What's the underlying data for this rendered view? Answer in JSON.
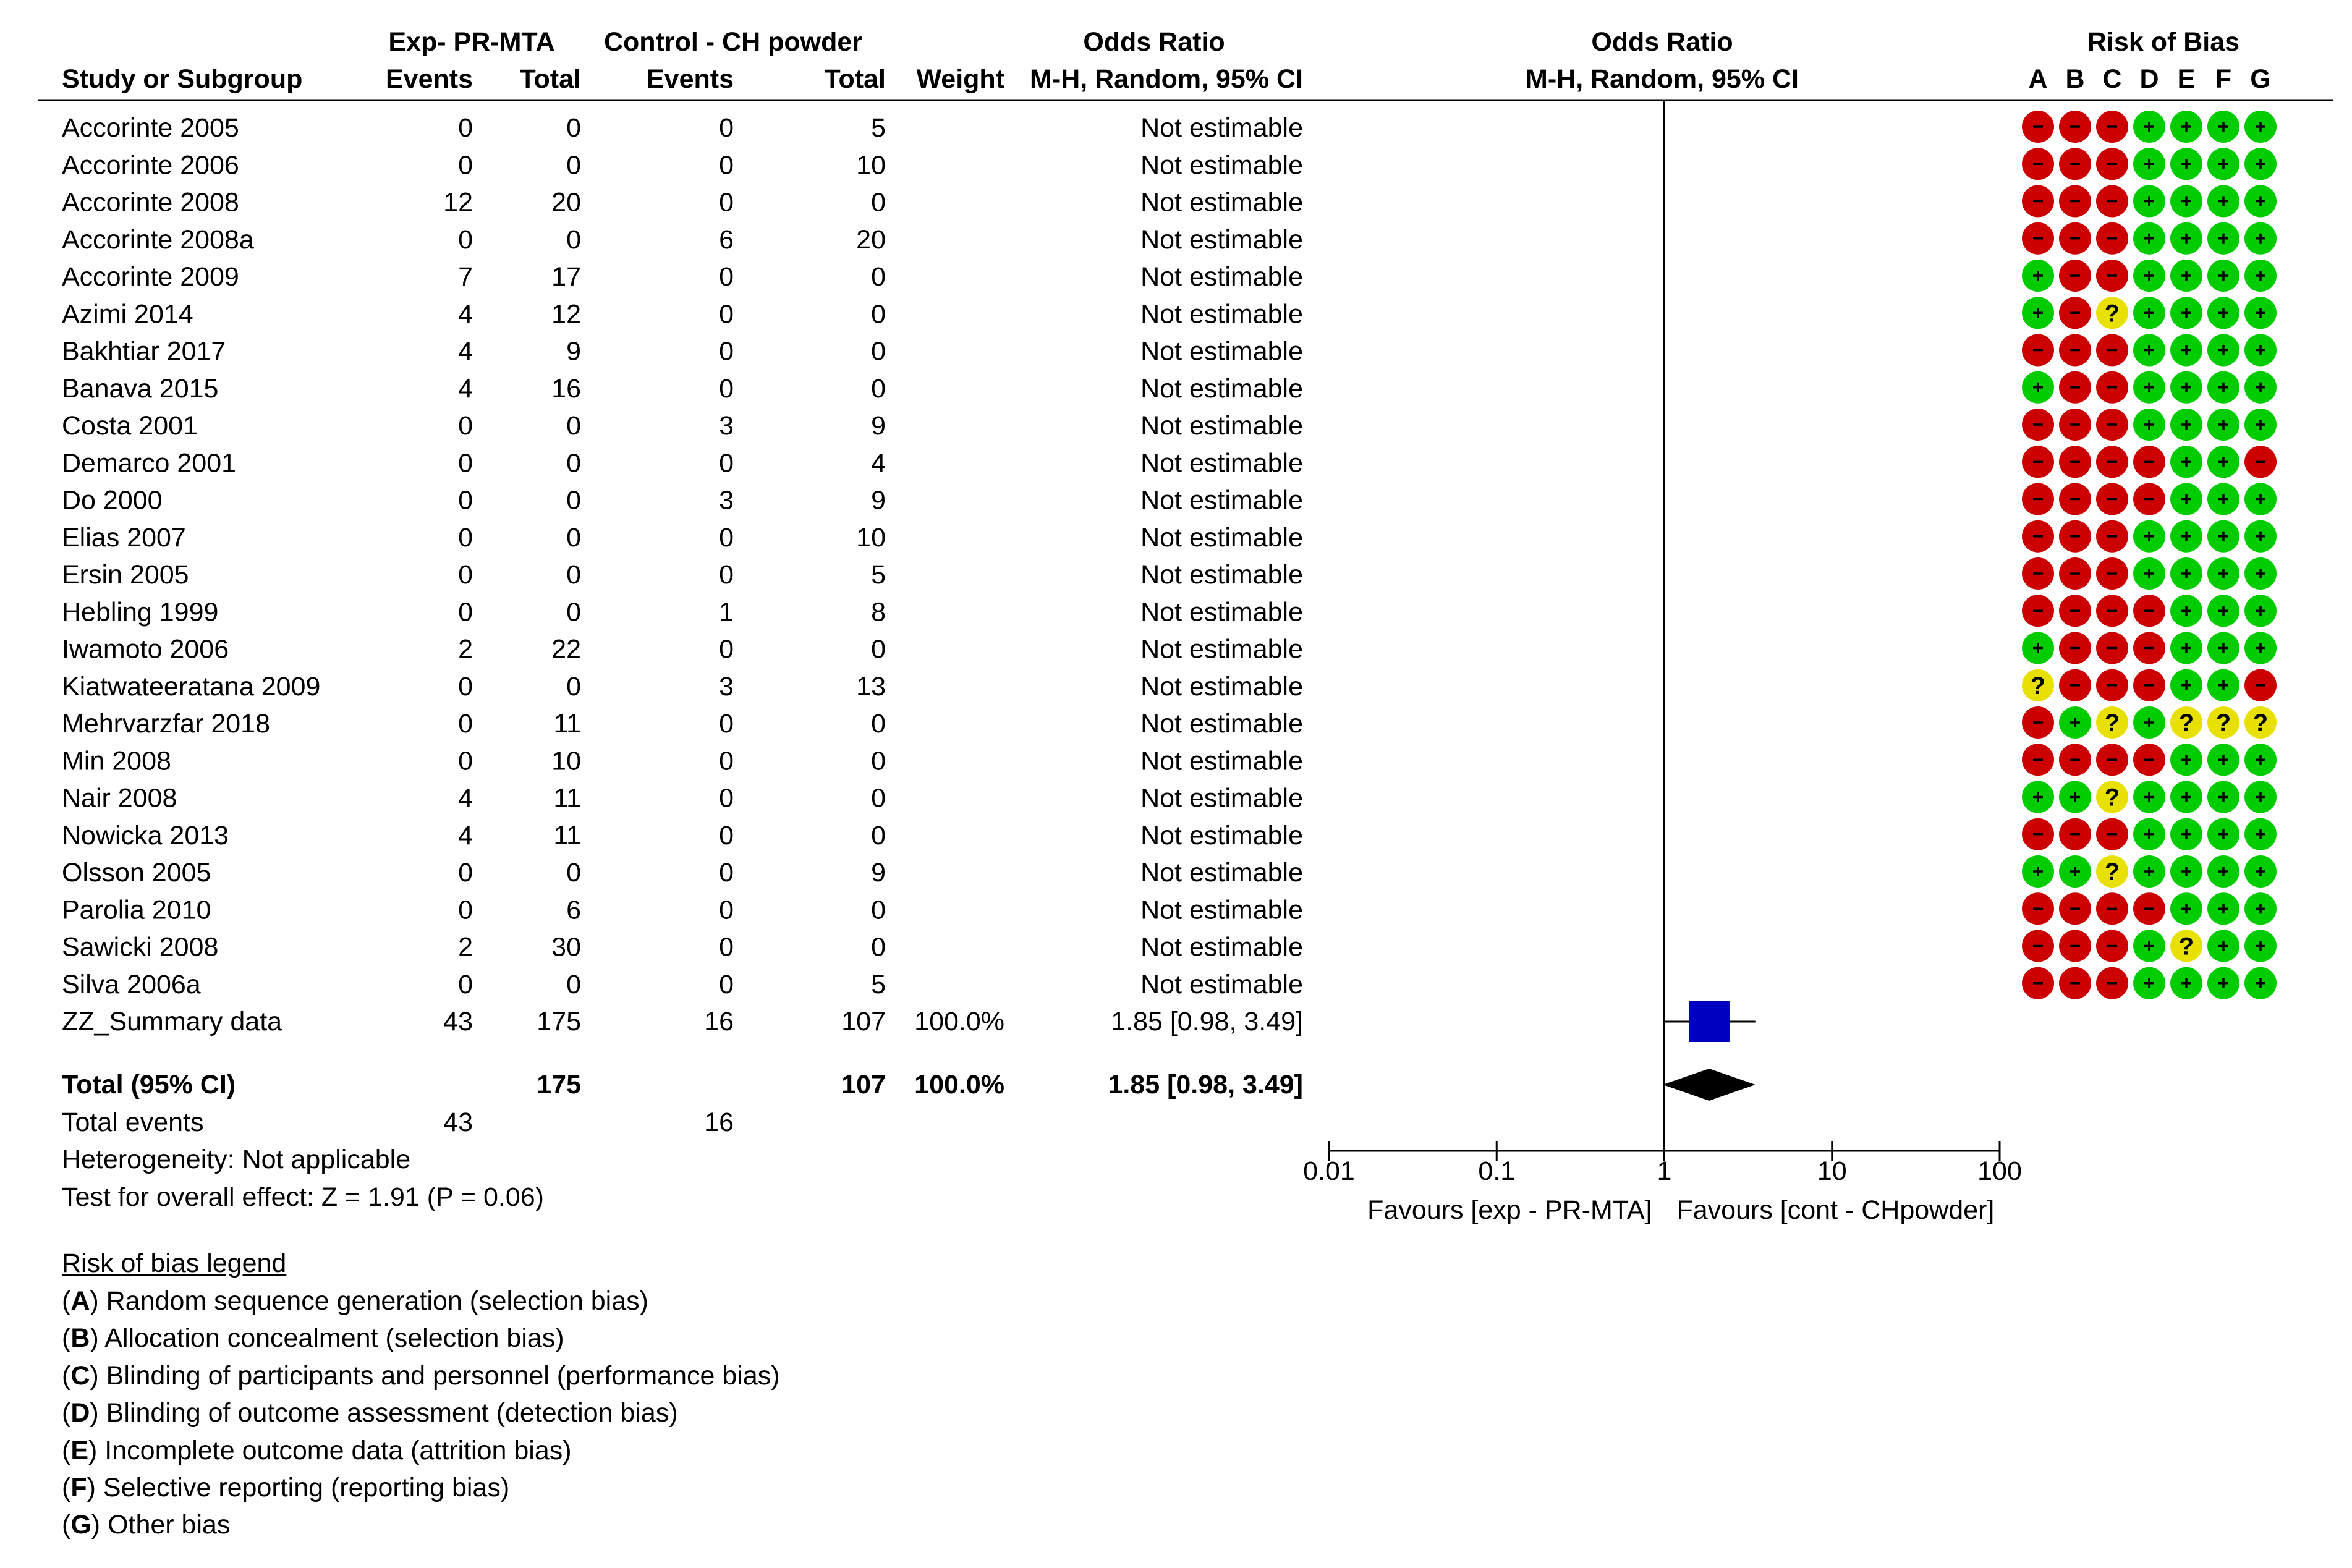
{
  "headers": {
    "study": "Study or Subgroup",
    "exp_group": "Exp- PR-MTA",
    "ctrl_group": "Control - CH powder",
    "events": "Events",
    "total": "Total",
    "weight": "Weight",
    "or_title": "Odds Ratio",
    "or_method": "M-H, Random, 95% CI",
    "plot_title": "Odds Ratio",
    "plot_method": "M-H, Random, 95% CI",
    "rob_title": "Risk of Bias",
    "rob_letters": [
      "A",
      "B",
      "C",
      "D",
      "E",
      "F",
      "G"
    ]
  },
  "chart_data": {
    "type": "table",
    "studies": [
      {
        "name": "Accorinte 2005",
        "exp_events": "0",
        "exp_total": "0",
        "ctrl_events": "0",
        "ctrl_total": "5",
        "weight": "",
        "or_text": "Not estimable",
        "rob": [
          "-",
          "-",
          "-",
          "+",
          "+",
          "+",
          "+"
        ]
      },
      {
        "name": "Accorinte 2006",
        "exp_events": "0",
        "exp_total": "0",
        "ctrl_events": "0",
        "ctrl_total": "10",
        "weight": "",
        "or_text": "Not estimable",
        "rob": [
          "-",
          "-",
          "-",
          "+",
          "+",
          "+",
          "+"
        ]
      },
      {
        "name": "Accorinte 2008",
        "exp_events": "12",
        "exp_total": "20",
        "ctrl_events": "0",
        "ctrl_total": "0",
        "weight": "",
        "or_text": "Not estimable",
        "rob": [
          "-",
          "-",
          "-",
          "+",
          "+",
          "+",
          "+"
        ]
      },
      {
        "name": "Accorinte 2008a",
        "exp_events": "0",
        "exp_total": "0",
        "ctrl_events": "6",
        "ctrl_total": "20",
        "weight": "",
        "or_text": "Not estimable",
        "rob": [
          "-",
          "-",
          "-",
          "+",
          "+",
          "+",
          "+"
        ]
      },
      {
        "name": "Accorinte 2009",
        "exp_events": "7",
        "exp_total": "17",
        "ctrl_events": "0",
        "ctrl_total": "0",
        "weight": "",
        "or_text": "Not estimable",
        "rob": [
          "+",
          "-",
          "-",
          "+",
          "+",
          "+",
          "+"
        ]
      },
      {
        "name": "Azimi 2014",
        "exp_events": "4",
        "exp_total": "12",
        "ctrl_events": "0",
        "ctrl_total": "0",
        "weight": "",
        "or_text": "Not estimable",
        "rob": [
          "+",
          "-",
          "?",
          "+",
          "+",
          "+",
          "+"
        ]
      },
      {
        "name": "Bakhtiar 2017",
        "exp_events": "4",
        "exp_total": "9",
        "ctrl_events": "0",
        "ctrl_total": "0",
        "weight": "",
        "or_text": "Not estimable",
        "rob": [
          "-",
          "-",
          "-",
          "+",
          "+",
          "+",
          "+"
        ]
      },
      {
        "name": "Banava 2015",
        "exp_events": "4",
        "exp_total": "16",
        "ctrl_events": "0",
        "ctrl_total": "0",
        "weight": "",
        "or_text": "Not estimable",
        "rob": [
          "+",
          "-",
          "-",
          "+",
          "+",
          "+",
          "+"
        ]
      },
      {
        "name": "Costa 2001",
        "exp_events": "0",
        "exp_total": "0",
        "ctrl_events": "3",
        "ctrl_total": "9",
        "weight": "",
        "or_text": "Not estimable",
        "rob": [
          "-",
          "-",
          "-",
          "+",
          "+",
          "+",
          "+"
        ]
      },
      {
        "name": "Demarco 2001",
        "exp_events": "0",
        "exp_total": "0",
        "ctrl_events": "0",
        "ctrl_total": "4",
        "weight": "",
        "or_text": "Not estimable",
        "rob": [
          "-",
          "-",
          "-",
          "-",
          "+",
          "+",
          "-"
        ]
      },
      {
        "name": "Do 2000",
        "exp_events": "0",
        "exp_total": "0",
        "ctrl_events": "3",
        "ctrl_total": "9",
        "weight": "",
        "or_text": "Not estimable",
        "rob": [
          "-",
          "-",
          "-",
          "-",
          "+",
          "+",
          "+"
        ]
      },
      {
        "name": "Elias 2007",
        "exp_events": "0",
        "exp_total": "0",
        "ctrl_events": "0",
        "ctrl_total": "10",
        "weight": "",
        "or_text": "Not estimable",
        "rob": [
          "-",
          "-",
          "-",
          "+",
          "+",
          "+",
          "+"
        ]
      },
      {
        "name": "Ersin 2005",
        "exp_events": "0",
        "exp_total": "0",
        "ctrl_events": "0",
        "ctrl_total": "5",
        "weight": "",
        "or_text": "Not estimable",
        "rob": [
          "-",
          "-",
          "-",
          "+",
          "+",
          "+",
          "+"
        ]
      },
      {
        "name": "Hebling 1999",
        "exp_events": "0",
        "exp_total": "0",
        "ctrl_events": "1",
        "ctrl_total": "8",
        "weight": "",
        "or_text": "Not estimable",
        "rob": [
          "-",
          "-",
          "-",
          "-",
          "+",
          "+",
          "+"
        ]
      },
      {
        "name": "Iwamoto 2006",
        "exp_events": "2",
        "exp_total": "22",
        "ctrl_events": "0",
        "ctrl_total": "0",
        "weight": "",
        "or_text": "Not estimable",
        "rob": [
          "+",
          "-",
          "-",
          "-",
          "+",
          "+",
          "+"
        ]
      },
      {
        "name": "Kiatwateeratana 2009",
        "exp_events": "0",
        "exp_total": "0",
        "ctrl_events": "3",
        "ctrl_total": "13",
        "weight": "",
        "or_text": "Not estimable",
        "rob": [
          "?",
          "-",
          "-",
          "-",
          "+",
          "+",
          "-"
        ]
      },
      {
        "name": "Mehrvarzfar 2018",
        "exp_events": "0",
        "exp_total": "11",
        "ctrl_events": "0",
        "ctrl_total": "0",
        "weight": "",
        "or_text": "Not estimable",
        "rob": [
          "-",
          "+",
          "?",
          "+",
          "?",
          "?",
          "?"
        ]
      },
      {
        "name": "Min 2008",
        "exp_events": "0",
        "exp_total": "10",
        "ctrl_events": "0",
        "ctrl_total": "0",
        "weight": "",
        "or_text": "Not estimable",
        "rob": [
          "-",
          "-",
          "-",
          "-",
          "+",
          "+",
          "+"
        ]
      },
      {
        "name": "Nair 2008",
        "exp_events": "4",
        "exp_total": "11",
        "ctrl_events": "0",
        "ctrl_total": "0",
        "weight": "",
        "or_text": "Not estimable",
        "rob": [
          "+",
          "+",
          "?",
          "+",
          "+",
          "+",
          "+"
        ]
      },
      {
        "name": "Nowicka 2013",
        "exp_events": "4",
        "exp_total": "11",
        "ctrl_events": "0",
        "ctrl_total": "0",
        "weight": "",
        "or_text": "Not estimable",
        "rob": [
          "-",
          "-",
          "-",
          "+",
          "+",
          "+",
          "+"
        ]
      },
      {
        "name": "Olsson 2005",
        "exp_events": "0",
        "exp_total": "0",
        "ctrl_events": "0",
        "ctrl_total": "9",
        "weight": "",
        "or_text": "Not estimable",
        "rob": [
          "+",
          "+",
          "?",
          "+",
          "+",
          "+",
          "+"
        ]
      },
      {
        "name": "Parolia 2010",
        "exp_events": "0",
        "exp_total": "6",
        "ctrl_events": "0",
        "ctrl_total": "0",
        "weight": "",
        "or_text": "Not estimable",
        "rob": [
          "-",
          "-",
          "-",
          "-",
          "+",
          "+",
          "+"
        ]
      },
      {
        "name": "Sawicki 2008",
        "exp_events": "2",
        "exp_total": "30",
        "ctrl_events": "0",
        "ctrl_total": "0",
        "weight": "",
        "or_text": "Not estimable",
        "rob": [
          "-",
          "-",
          "-",
          "+",
          "?",
          "+",
          "+"
        ]
      },
      {
        "name": "Silva 2006a",
        "exp_events": "0",
        "exp_total": "0",
        "ctrl_events": "0",
        "ctrl_total": "5",
        "weight": "",
        "or_text": "Not estimable",
        "rob": [
          "-",
          "-",
          "-",
          "+",
          "+",
          "+",
          "+"
        ]
      },
      {
        "name": "ZZ_Summary data",
        "exp_events": "43",
        "exp_total": "175",
        "ctrl_events": "16",
        "ctrl_total": "107",
        "weight": "100.0%",
        "or_text": "1.85 [0.98, 3.49]",
        "or": 1.85,
        "ci": [
          0.98,
          3.49
        ],
        "rob": []
      }
    ],
    "total": {
      "label": "Total (95% CI)",
      "exp_total": "175",
      "ctrl_total": "107",
      "weight": "100.0%",
      "or_text": "1.85 [0.98, 3.49]",
      "or": 1.85,
      "ci": [
        0.98,
        3.49
      ]
    },
    "total_events": {
      "label": "Total events",
      "exp": "43",
      "ctrl": "16"
    },
    "heterogeneity": "Heterogeneity: Not applicable",
    "overall_effect": "Test for overall effect: Z = 1.91 (P = 0.06)",
    "x_axis": {
      "scale": "log",
      "range": [
        0.01,
        100
      ],
      "ticks": [
        0.01,
        0.1,
        1,
        10,
        100
      ],
      "tick_labels": [
        "0.01",
        "0.1",
        "1",
        "10",
        "100"
      ]
    },
    "favours_left": "Favours [exp - PR-MTA]",
    "favours_right": "Favours [cont - CHpowder]"
  },
  "colors": {
    "low": "#00cc00",
    "high": "#cc0000",
    "unclear": "#e8e000",
    "square": "#0000c0",
    "diamond": "#000000"
  },
  "legend": {
    "title": "Risk of bias legend",
    "items": [
      {
        "key": "(A)",
        "letter": "A",
        "text": "Random sequence generation (selection bias)"
      },
      {
        "key": "(B)",
        "letter": "B",
        "text": "Allocation concealment (selection bias)"
      },
      {
        "key": "(C)",
        "letter": "C",
        "text": "Blinding of participants and personnel (performance bias)"
      },
      {
        "key": "(D)",
        "letter": "D",
        "text": "Blinding of outcome assessment (detection bias)"
      },
      {
        "key": "(E)",
        "letter": "E",
        "text": "Incomplete outcome data (attrition bias)"
      },
      {
        "key": "(F)",
        "letter": "F",
        "text": "Selective reporting (reporting bias)"
      },
      {
        "key": "(G)",
        "letter": "G",
        "text": "Other bias"
      }
    ]
  }
}
